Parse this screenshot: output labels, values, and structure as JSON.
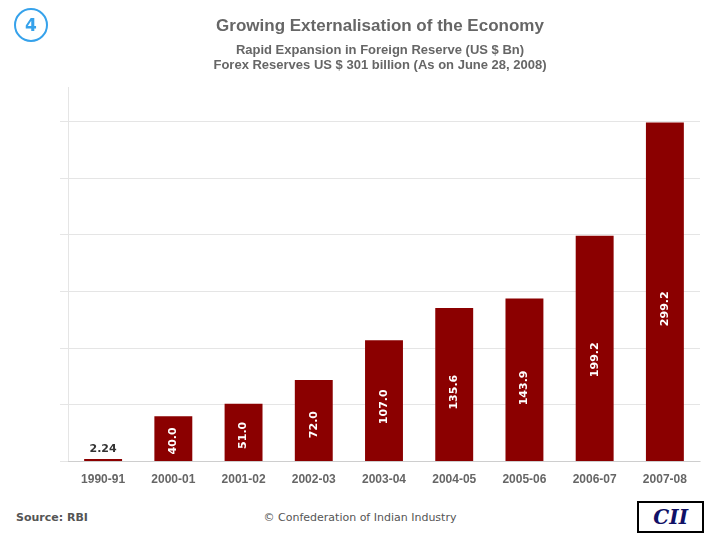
{
  "chart_data": {
    "type": "bar",
    "title": "Growing Externalisation of the Economy",
    "subtitle": [
      "Rapid Expansion in Foreign Reserve (US $ Bn)",
      "Forex Reserves US $ 301 billion (As on June 28, 2008)"
    ],
    "annotations": [
      "4",
      "Source: RBI",
      "© Confederation of Indian Industry",
      "CII"
    ],
    "categories": [
      "1990-91",
      "2000-01",
      "2001-02",
      "2002-03",
      "2003-04",
      "2004-05",
      "2005-06",
      "2006-07",
      "2007-08"
    ],
    "values": [
      2.24,
      40.0,
      51.0,
      72.0,
      107.0,
      135.6,
      143.9,
      199.2,
      299.2
    ],
    "value_labels": [
      "2.24",
      "40.0",
      "51.0",
      "72.0",
      "107.0",
      "135.6",
      "143.9",
      "199.2",
      "299.2"
    ],
    "data_labels": true,
    "color": "#8B0000",
    "ylim": [
      0,
      330
    ],
    "yticks": [
      0,
      50,
      100,
      150,
      200,
      250,
      300
    ],
    "grid": true,
    "tick_labels": "x"
  }
}
